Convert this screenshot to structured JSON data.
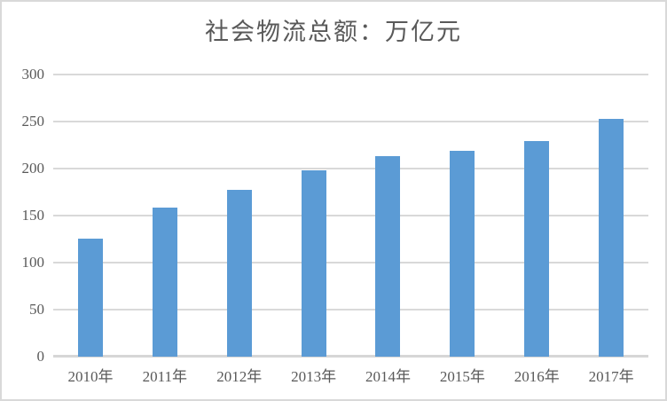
{
  "chart_data": {
    "type": "bar",
    "title": "社会物流总额：万亿元",
    "categories": [
      "2010年",
      "2011年",
      "2012年",
      "2013年",
      "2014年",
      "2015年",
      "2016年",
      "2017年"
    ],
    "values": [
      125.4,
      158.4,
      177.3,
      197.8,
      213.5,
      219.2,
      229.7,
      252.8
    ],
    "xlabel": "",
    "ylabel": "",
    "ylim": [
      0,
      300
    ],
    "yticks": [
      0,
      50,
      100,
      150,
      200,
      250,
      300
    ],
    "grid": true,
    "legend": "none",
    "bar_color": "#5b9bd5",
    "gridline_color": "#d9d9d9",
    "axis_line_color": "#d6d6d6",
    "text_color": "#595959",
    "background_color": "#ffffff",
    "border_color": "#d9d9d9"
  }
}
